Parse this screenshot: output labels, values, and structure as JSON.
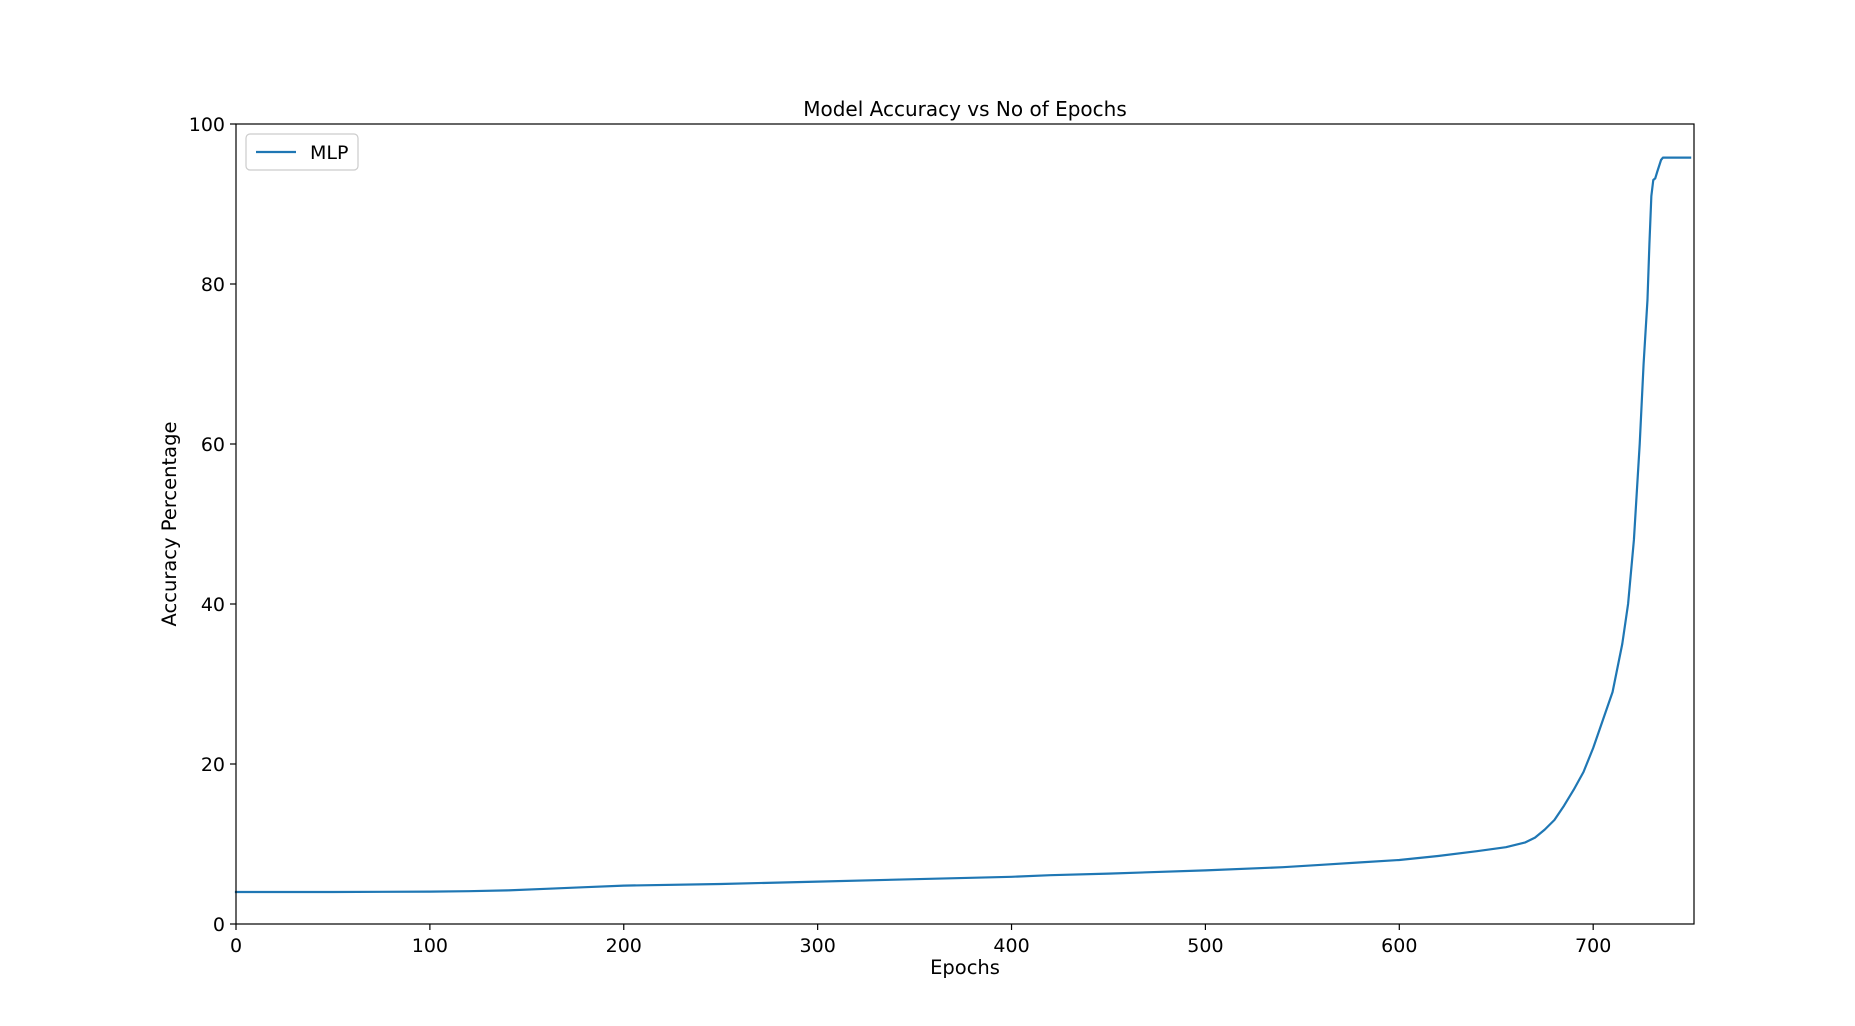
{
  "chart_data": {
    "type": "line",
    "title": "Model Accuracy vs No of Epochs",
    "xlabel": "Epochs",
    "ylabel": "Accuracy Percentage",
    "xlim": [
      0,
      752
    ],
    "ylim": [
      0,
      100
    ],
    "xticks": [
      0,
      100,
      200,
      300,
      400,
      500,
      600,
      700
    ],
    "yticks": [
      0,
      20,
      40,
      60,
      80,
      100
    ],
    "grid": false,
    "legend_position": "upper-left",
    "series": [
      {
        "name": "MLP",
        "color": "#1f77b4",
        "x": [
          0,
          50,
          100,
          120,
          140,
          160,
          180,
          200,
          250,
          300,
          350,
          400,
          420,
          450,
          500,
          540,
          560,
          580,
          600,
          620,
          640,
          655,
          665,
          670,
          675,
          680,
          685,
          690,
          695,
          700,
          705,
          710,
          715,
          718,
          721,
          724,
          726,
          728,
          729,
          730,
          731,
          732,
          733,
          735,
          736,
          737,
          738,
          740,
          745,
          750
        ],
        "y": [
          4.0,
          4.0,
          4.05,
          4.1,
          4.2,
          4.4,
          4.6,
          4.8,
          5.0,
          5.3,
          5.6,
          5.9,
          6.1,
          6.3,
          6.7,
          7.1,
          7.4,
          7.7,
          8.0,
          8.5,
          9.1,
          9.6,
          10.2,
          10.8,
          11.8,
          13.0,
          14.8,
          16.8,
          19.0,
          22.0,
          25.5,
          29.0,
          35.0,
          40.0,
          48.0,
          60.0,
          70.0,
          78.0,
          85.0,
          91.0,
          93.0,
          93.2,
          94.0,
          95.5,
          95.8,
          95.8,
          95.8,
          95.8,
          95.8,
          95.8
        ]
      }
    ]
  }
}
